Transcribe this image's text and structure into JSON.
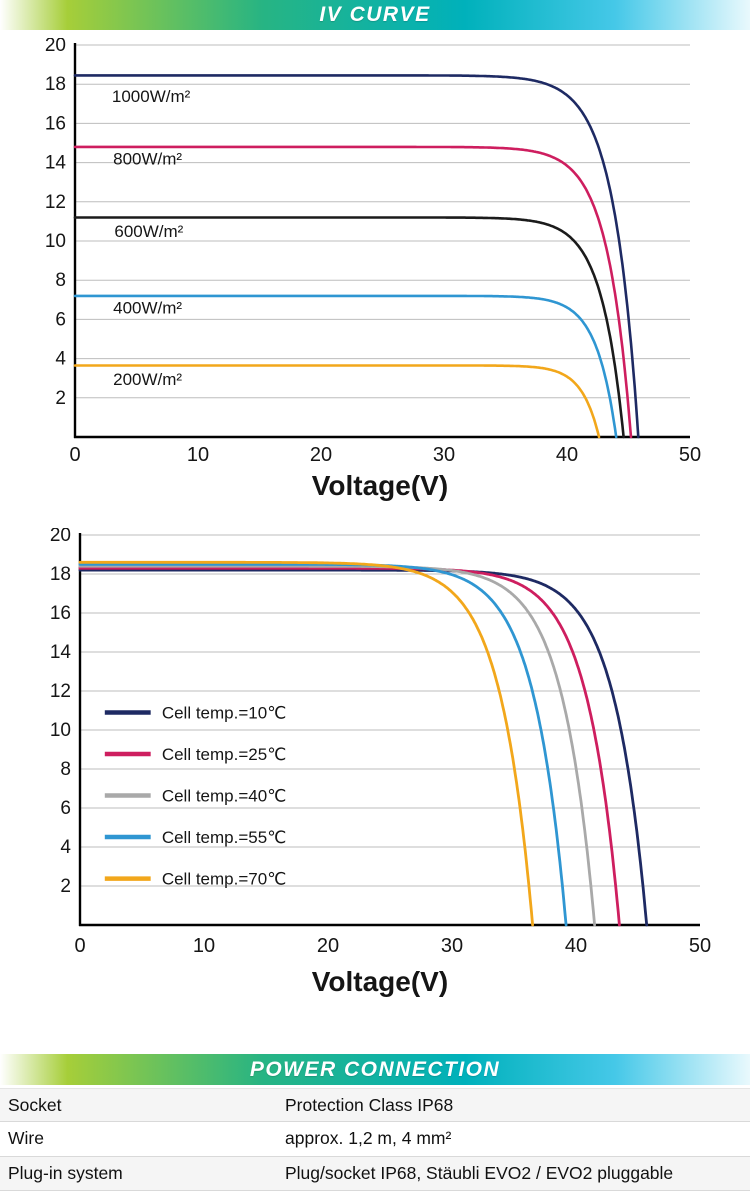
{
  "banners": {
    "iv_curve": "IV CURVE",
    "power_connection": "POWER CONNECTION"
  },
  "colors": {
    "banner_green": "#a6ce39",
    "banner_teal": "#00b1bb",
    "banner_cyan": "#45c8e8",
    "grid": "#bdbdbd",
    "axis": "#000000"
  },
  "chart_data": [
    {
      "type": "line",
      "xlabel": "Voltage(V)",
      "xlim": [
        0,
        50
      ],
      "ylim": [
        0,
        20
      ],
      "xticks": [
        0,
        10,
        20,
        30,
        40,
        50
      ],
      "yticks": [
        2,
        4,
        6,
        8,
        10,
        12,
        14,
        16,
        18,
        20
      ],
      "grid": "horizontal",
      "series": [
        {
          "key": "1000wm2",
          "name": "1000W/m²",
          "color": "#1e2a63",
          "isc": 18.45,
          "voc": 45.8,
          "knee": 2.0,
          "label_pos": {
            "x": 3.0,
            "y": 17.1
          }
        },
        {
          "key": "800wm2",
          "name": "800W/m²",
          "color": "#ce1e5f",
          "isc": 14.8,
          "voc": 45.2,
          "knee": 1.9,
          "label_pos": {
            "x": 3.1,
            "y": 13.9
          }
        },
        {
          "key": "600wm2",
          "name": "600W/m²",
          "color": "#1b1b1b",
          "isc": 11.2,
          "voc": 44.6,
          "knee": 1.8,
          "label_pos": {
            "x": 3.2,
            "y": 10.2
          }
        },
        {
          "key": "400wm2",
          "name": "400W/m²",
          "color": "#2f96d2",
          "isc": 7.2,
          "voc": 44.0,
          "knee": 1.6,
          "label_pos": {
            "x": 3.1,
            "y": 6.3
          }
        },
        {
          "key": "200wm2",
          "name": "200W/m²",
          "color": "#f2a71b",
          "isc": 3.65,
          "voc": 42.6,
          "knee": 1.4,
          "label_pos": {
            "x": 3.1,
            "y": 2.65
          }
        }
      ]
    },
    {
      "type": "line",
      "xlabel": "Voltage(V)",
      "xlim": [
        0,
        50
      ],
      "ylim": [
        0,
        20
      ],
      "xticks": [
        0,
        10,
        20,
        30,
        40,
        50
      ],
      "yticks": [
        2,
        4,
        6,
        8,
        10,
        12,
        14,
        16,
        18,
        20
      ],
      "grid": "horizontal",
      "legend": {
        "position": "inside-left",
        "x": 2.0,
        "line_len": 3.7,
        "label_x": 6.6,
        "y_start": 10.9,
        "y_step": 2.13
      },
      "series": [
        {
          "key": "temp10",
          "name": "Cell temp.=10℃",
          "color": "#1e2a63",
          "isc": 18.2,
          "voc": 45.7,
          "knee": 2.6
        },
        {
          "key": "temp25",
          "name": "Cell temp.=25℃",
          "color": "#ce1e5f",
          "isc": 18.3,
          "voc": 43.5,
          "knee": 2.6
        },
        {
          "key": "temp40",
          "name": "Cell temp.=40℃",
          "color": "#a9a9a9",
          "isc": 18.4,
          "voc": 41.5,
          "knee": 2.6
        },
        {
          "key": "temp55",
          "name": "Cell temp.=55℃",
          "color": "#2f96d2",
          "isc": 18.5,
          "voc": 39.2,
          "knee": 2.6
        },
        {
          "key": "temp70",
          "name": "Cell temp.=70℃",
          "color": "#f2a71b",
          "isc": 18.6,
          "voc": 36.5,
          "knee": 2.6
        }
      ]
    }
  ],
  "table": {
    "rows": [
      {
        "label": "Socket",
        "value": "Protection Class IP68"
      },
      {
        "label": "Wire",
        "value": "approx. 1,2 m, 4 mm²"
      },
      {
        "label": "Plug-in system",
        "value": "Plug/socket IP68, Stäubli EVO2 / EVO2 pluggable"
      }
    ]
  }
}
